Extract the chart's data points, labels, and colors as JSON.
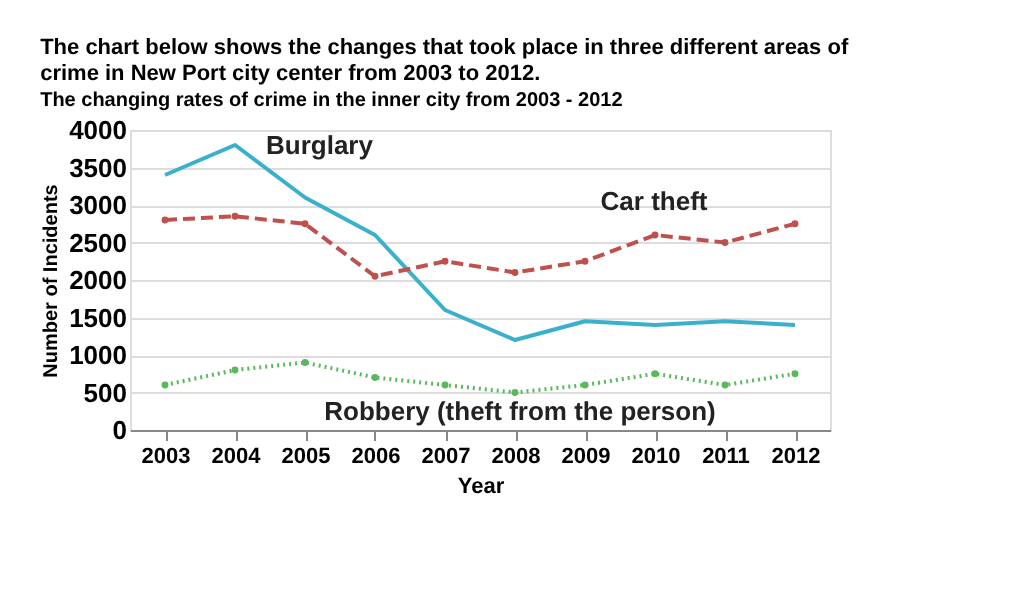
{
  "chart_data": {
    "type": "line",
    "title": "The chart below shows the changes that took place in three different areas of crime in New Port city center from 2003 to 2012.",
    "subtitle": "The changing rates of crime in the inner city from 2003 - 2012",
    "xlabel": "Year",
    "ylabel": "Number of Incidents",
    "categories": [
      "2003",
      "2004",
      "2005",
      "2006",
      "2007",
      "2008",
      "2009",
      "2010",
      "2011",
      "2012"
    ],
    "series": [
      {
        "name": "Burglary",
        "color": "#3ab0cf",
        "line_style": "solid",
        "marker": "none",
        "values": [
          3400,
          3800,
          3100,
          2600,
          1600,
          1200,
          1450,
          1400,
          1450,
          1400
        ]
      },
      {
        "name": "Car theft",
        "color": "#c0504d",
        "line_style": "dashed",
        "marker": "circle",
        "values": [
          2800,
          2850,
          2750,
          2050,
          2250,
          2100,
          2250,
          2600,
          2500,
          2750
        ]
      },
      {
        "name": "Robbery (theft from the person)",
        "color": "#5cb85c",
        "line_style": "dotted",
        "marker": "circle",
        "values": [
          600,
          800,
          900,
          700,
          600,
          500,
          600,
          750,
          600,
          750
        ]
      }
    ],
    "ylim": [
      0,
      4000
    ],
    "yticks": [
      0,
      500,
      1000,
      1500,
      2000,
      2500,
      3000,
      3500,
      4000
    ],
    "grid": "y",
    "legend": false
  }
}
